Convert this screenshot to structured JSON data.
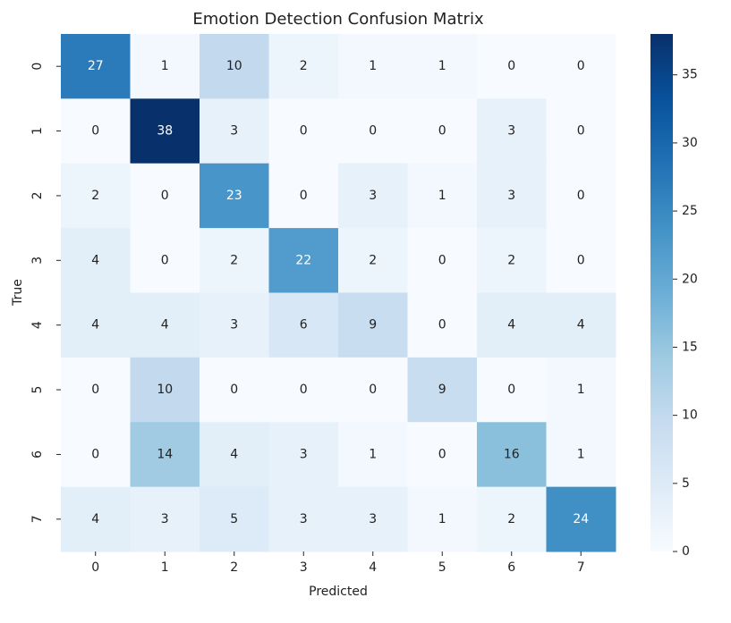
{
  "chart_data": {
    "type": "heatmap",
    "title": "Emotion Detection Confusion Matrix",
    "x_label": "Predicted",
    "y_label": "True",
    "x_categories": [
      "0",
      "1",
      "2",
      "3",
      "4",
      "5",
      "6",
      "7"
    ],
    "y_categories": [
      "0",
      "1",
      "2",
      "3",
      "4",
      "5",
      "6",
      "7"
    ],
    "values": [
      [
        27,
        1,
        10,
        2,
        1,
        1,
        0,
        0
      ],
      [
        0,
        38,
        3,
        0,
        0,
        0,
        3,
        0
      ],
      [
        2,
        0,
        23,
        0,
        3,
        1,
        3,
        0
      ],
      [
        4,
        0,
        2,
        22,
        2,
        0,
        2,
        0
      ],
      [
        4,
        4,
        3,
        6,
        9,
        0,
        4,
        4
      ],
      [
        0,
        10,
        0,
        0,
        0,
        9,
        0,
        1
      ],
      [
        0,
        14,
        4,
        3,
        1,
        0,
        16,
        1
      ],
      [
        4,
        3,
        5,
        3,
        3,
        1,
        2,
        24
      ]
    ],
    "colormap": "Blues",
    "clim": [
      0,
      38
    ],
    "cticks": [
      0,
      5,
      10,
      15,
      20,
      25,
      30,
      35
    ]
  }
}
